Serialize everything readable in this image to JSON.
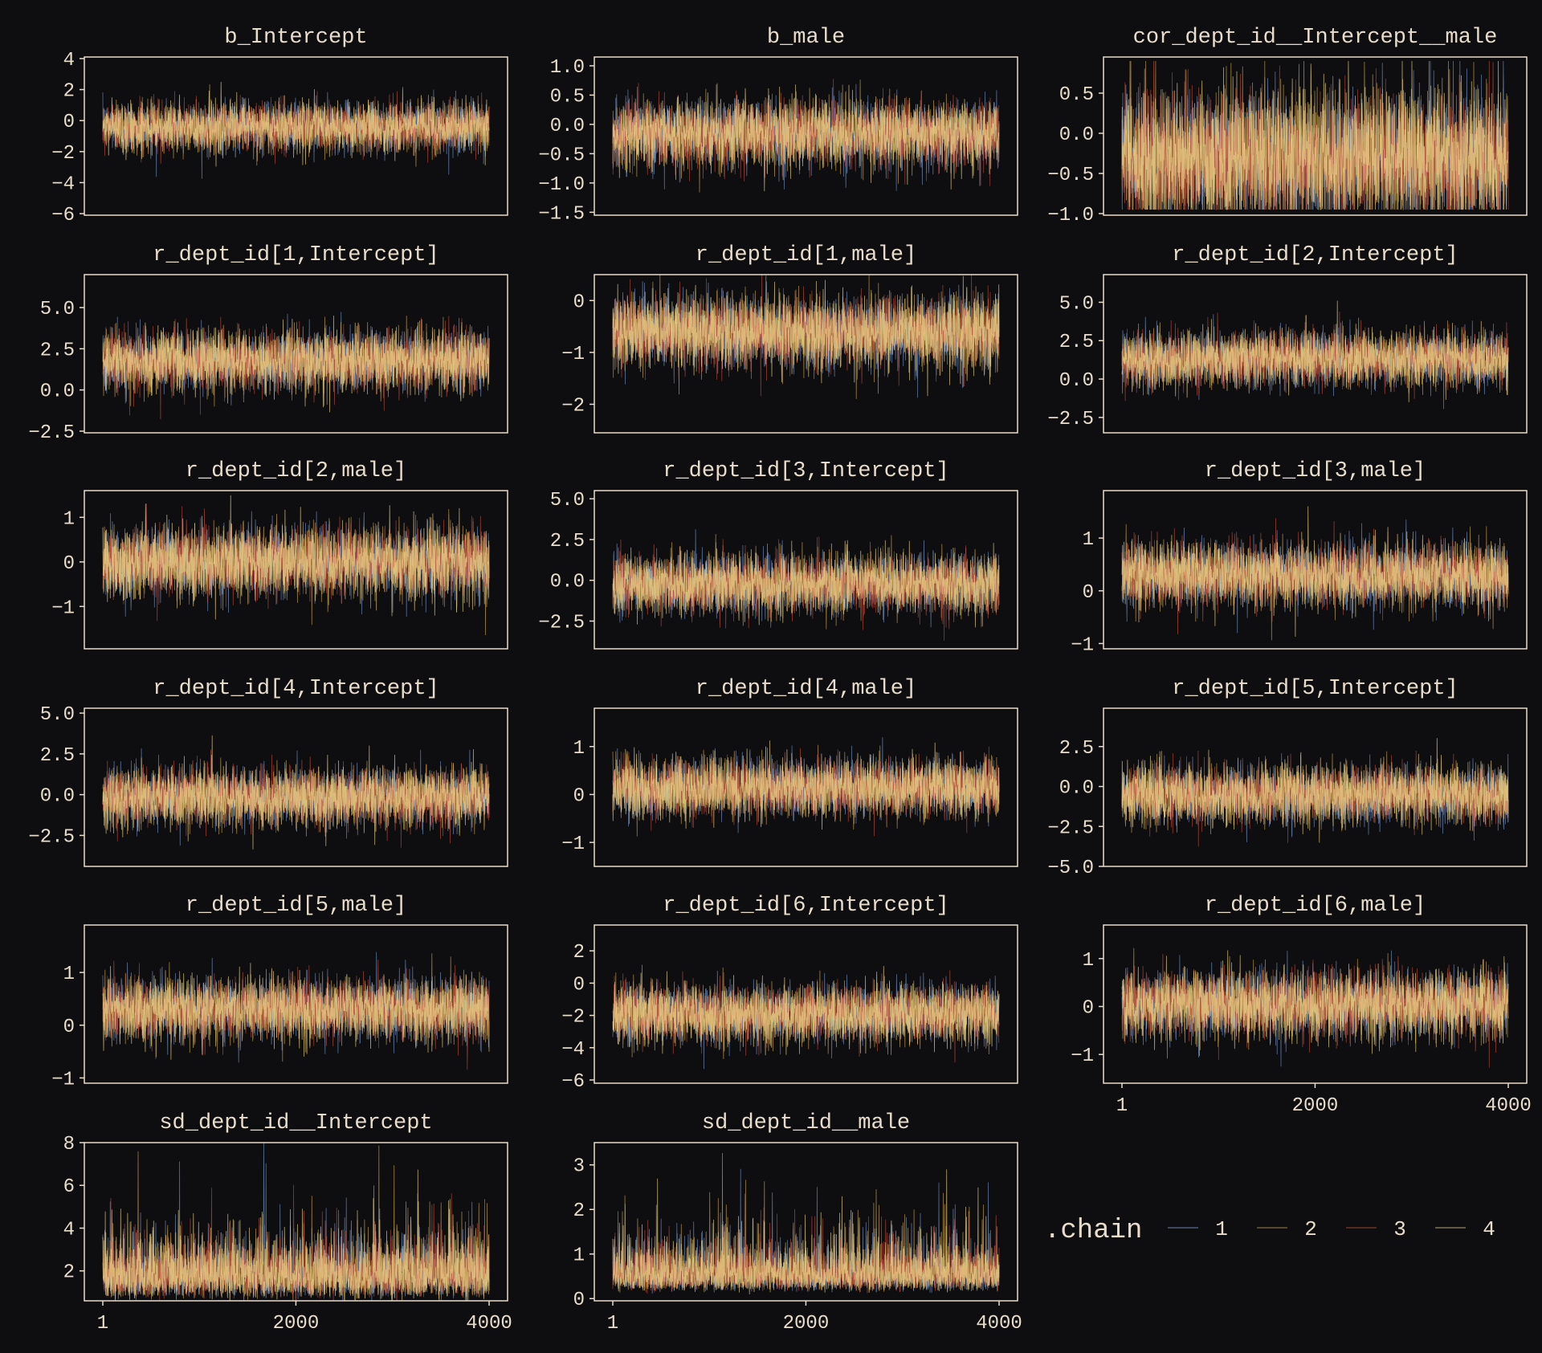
{
  "chart_data": {
    "type": "line",
    "subtype": "trace-plot-facets",
    "background": "#0e0e11",
    "foreground": "#e8dccb",
    "xlim": [
      1,
      4000
    ],
    "x_ticks": [
      1,
      2000,
      4000
    ],
    "legend": {
      "title": ".chain",
      "placement": "bottom-right",
      "entries": [
        "1",
        "2",
        "3",
        "4"
      ]
    },
    "chain_colors": [
      "#6f8fc0",
      "#c9a24e",
      "#b54a38",
      "#ecd488"
    ],
    "legend_colors": [
      "#4b5d78",
      "#6f5c36",
      "#6a3226",
      "#7d7458"
    ],
    "panels": [
      {
        "title": "b_Intercept",
        "ylim": [
          -6.1,
          4.1
        ],
        "y_ticks": [
          -6,
          -4,
          -2,
          0,
          2,
          4
        ],
        "center": -0.4,
        "spread": 0.8
      },
      {
        "title": "b_male",
        "ylim": [
          -1.55,
          1.15
        ],
        "y_ticks": [
          -1.5,
          -1.0,
          -0.5,
          0.0,
          0.5,
          1.0
        ],
        "center": -0.15,
        "spread": 0.28
      },
      {
        "title": "cor_dept_id__Intercept__male",
        "ylim": [
          -1.02,
          0.95
        ],
        "y_ticks": [
          -1.0,
          -0.5,
          0.0,
          0.5
        ],
        "center": -0.3,
        "spread": 0.42,
        "bounded": [
          -0.95,
          0.9
        ]
      },
      {
        "title": "r_dept_id[1,Intercept]",
        "ylim": [
          -2.6,
          7.0
        ],
        "y_ticks": [
          -2.5,
          0.0,
          2.5,
          5.0
        ],
        "center": 1.8,
        "spread": 0.9
      },
      {
        "title": "r_dept_id[1,male]",
        "ylim": [
          -2.55,
          0.5
        ],
        "y_ticks": [
          -2,
          -1,
          0
        ],
        "center": -0.6,
        "spread": 0.35
      },
      {
        "title": "r_dept_id[2,Intercept]",
        "ylim": [
          -3.5,
          6.8
        ],
        "y_ticks": [
          -2.5,
          0.0,
          2.5,
          5.0
        ],
        "center": 1.3,
        "spread": 0.9
      },
      {
        "title": "r_dept_id[2,male]",
        "ylim": [
          -1.95,
          1.6
        ],
        "y_ticks": [
          -1,
          0,
          1
        ],
        "center": 0.0,
        "spread": 0.4
      },
      {
        "title": "r_dept_id[3,Intercept]",
        "ylim": [
          -4.2,
          5.5
        ],
        "y_ticks": [
          -2.5,
          0.0,
          2.5,
          5.0
        ],
        "center": -0.2,
        "spread": 0.9
      },
      {
        "title": "r_dept_id[3,male]",
        "ylim": [
          -1.1,
          1.9
        ],
        "y_ticks": [
          -1,
          0,
          1
        ],
        "center": 0.3,
        "spread": 0.3
      },
      {
        "title": "r_dept_id[4,Intercept]",
        "ylim": [
          -4.4,
          5.3
        ],
        "y_ticks": [
          -2.5,
          0.0,
          2.5,
          5.0
        ],
        "center": -0.1,
        "spread": 0.9
      },
      {
        "title": "r_dept_id[4,male]",
        "ylim": [
          -1.5,
          1.8
        ],
        "y_ticks": [
          -1,
          0,
          1
        ],
        "center": 0.15,
        "spread": 0.3
      },
      {
        "title": "r_dept_id[5,Intercept]",
        "ylim": [
          -5.0,
          4.9
        ],
        "y_ticks": [
          -5.0,
          -2.5,
          0.0,
          2.5
        ],
        "center": -0.5,
        "spread": 0.9
      },
      {
        "title": "r_dept_id[5,male]",
        "ylim": [
          -1.1,
          1.9
        ],
        "y_ticks": [
          -1,
          0,
          1
        ],
        "center": 0.3,
        "spread": 0.3
      },
      {
        "title": "r_dept_id[6,Intercept]",
        "ylim": [
          -6.2,
          3.6
        ],
        "y_ticks": [
          -6,
          -4,
          -2,
          0,
          2
        ],
        "center": -1.9,
        "spread": 0.9
      },
      {
        "title": "r_dept_id[6,male]",
        "ylim": [
          -1.6,
          1.7
        ],
        "y_ticks": [
          -1,
          0,
          1
        ],
        "center": 0.05,
        "spread": 0.35
      },
      {
        "title": "sd_dept_id__Intercept",
        "ylim": [
          0.6,
          8.0
        ],
        "y_ticks": [
          2,
          4,
          6,
          8
        ],
        "center": 1.8,
        "spread": 0.4,
        "lognormal": true
      },
      {
        "title": "sd_dept_id__male",
        "ylim": [
          -0.05,
          3.5
        ],
        "y_ticks": [
          0,
          1,
          2,
          3
        ],
        "center": 0.55,
        "spread": 0.5,
        "lognormal": true
      }
    ]
  }
}
